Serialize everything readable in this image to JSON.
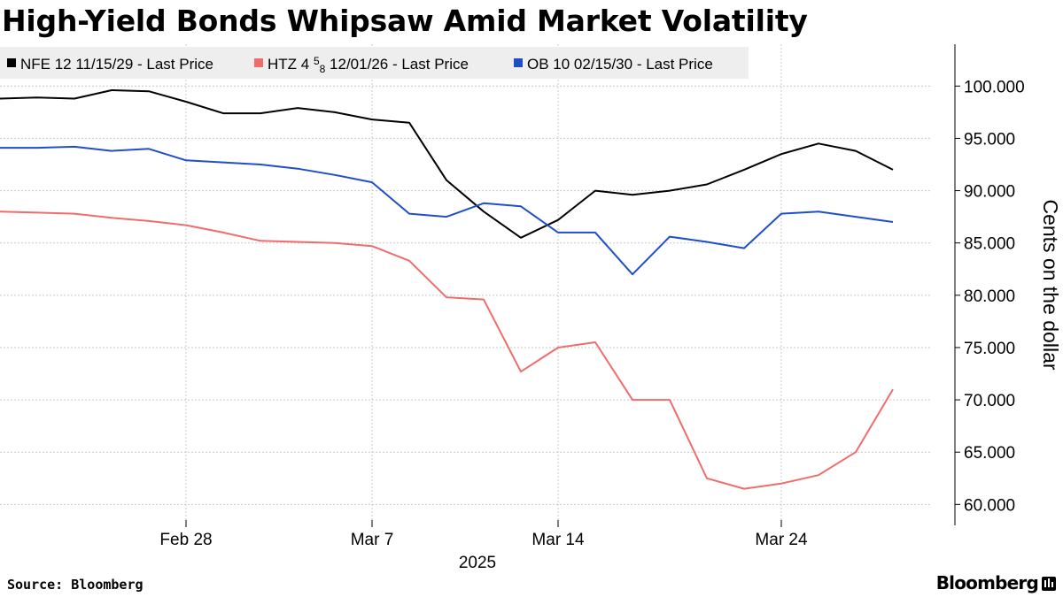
{
  "title": "High-Yield Bonds Whipsaw Amid Market Volatility",
  "source": "Source: Bloomberg",
  "brand": "Bloomberg",
  "chart_data": {
    "type": "line",
    "ylabel": "Cents on the dollar",
    "ylim": [
      58,
      104
    ],
    "yticks": [
      60,
      65,
      70,
      75,
      80,
      85,
      90,
      95,
      100
    ],
    "ytick_labels": [
      "60.000",
      "65.000",
      "70.000",
      "75.000",
      "80.000",
      "85.000",
      "90.000",
      "95.000",
      "100.000"
    ],
    "xlim": [
      0,
      25
    ],
    "x": [
      0,
      1,
      2,
      3,
      4,
      5,
      6,
      7,
      8,
      9,
      10,
      11,
      12,
      13,
      14,
      15,
      16,
      17,
      18,
      19,
      20,
      21,
      22,
      23,
      24
    ],
    "xticks": [
      {
        "at": 5,
        "label": "Feb 28"
      },
      {
        "at": 10,
        "label": "Mar 7"
      },
      {
        "at": 15,
        "label": "Mar 14"
      },
      {
        "at": 21,
        "label": "Mar 24"
      }
    ],
    "year_label": "2025",
    "grid": true,
    "legend_position": "top-left",
    "series": [
      {
        "name": "NFE 12 11/15/29 - Last Price",
        "legend_parts": [
          "NFE 12 11/15/29 - Last Price"
        ],
        "color": "#000000",
        "values": [
          98.8,
          98.9,
          98.8,
          99.6,
          99.5,
          98.5,
          97.4,
          97.4,
          97.9,
          97.5,
          96.8,
          96.5,
          91.0,
          88.0,
          85.5,
          87.2,
          90.0,
          89.6,
          90.0,
          90.6,
          92.0,
          93.5,
          94.5,
          93.8,
          92.0
        ]
      },
      {
        "name": "HTZ 4 5/8 12/01/26 - Last Price",
        "legend_parts": [
          "HTZ 4 ",
          "5",
          "8",
          " 12/01/26 - Last Price"
        ],
        "color": "#f06c6c",
        "values": [
          88.0,
          87.9,
          87.8,
          87.4,
          87.1,
          86.7,
          86.0,
          85.2,
          85.1,
          85.0,
          84.7,
          83.3,
          79.8,
          79.6,
          72.7,
          75.0,
          75.5,
          70.0,
          70.0,
          62.5,
          61.5,
          62.0,
          62.8,
          65.0,
          71.0
        ]
      },
      {
        "name": "OB 10 02/15/30 - Last Price",
        "legend_parts": [
          "OB 10 02/15/30 - Last Price"
        ],
        "color": "#1f4fc8",
        "values": [
          94.1,
          94.1,
          94.2,
          93.8,
          94.0,
          92.9,
          92.7,
          92.5,
          92.1,
          91.5,
          90.8,
          87.8,
          87.5,
          88.8,
          88.5,
          86.0,
          86.0,
          82.0,
          85.6,
          85.1,
          84.5,
          87.8,
          88.0,
          87.5,
          87.0
        ]
      }
    ]
  }
}
